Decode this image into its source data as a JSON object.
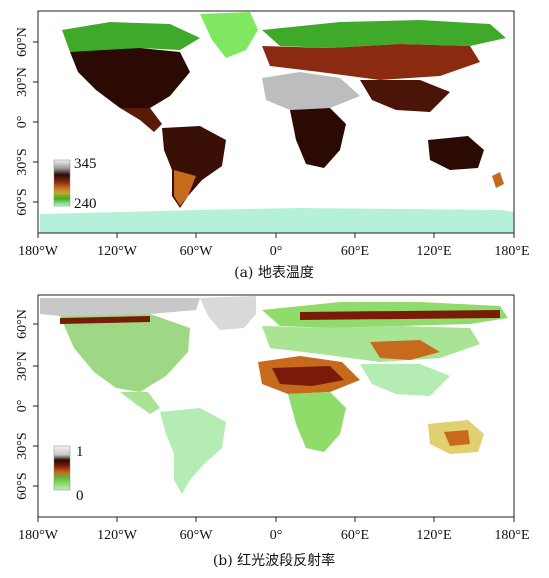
{
  "colors": {
    "ocean": "#ffffff",
    "frame": "#222222",
    "antarctic_ice": "#b5f0d8",
    "temperature_ramp": [
      "#b0ffb8",
      "#7fe860",
      "#3faa2a",
      "#b8b030",
      "#c86a1e",
      "#8a2a10",
      "#2b0a04",
      "#bdbdbd",
      "#f2f2f2"
    ],
    "reflectance_ramp": [
      "#b8f0b8",
      "#8fdc6a",
      "#5fb83a",
      "#e0d070",
      "#c86a1e",
      "#7a1a08",
      "#2b0a04",
      "#c8c8c8",
      "#f5f5f5"
    ]
  },
  "x_axis": {
    "ticks": [
      "180°W",
      "120°W",
      "60°W",
      "0°",
      "60°E",
      "120°E",
      "180°E"
    ]
  },
  "y_axis": {
    "ticks": [
      "60°N",
      "30°N",
      "0°",
      "30°S",
      "60°S"
    ]
  },
  "panels": [
    {
      "id": "a",
      "caption": "(a) 地表温度",
      "legend": {
        "max": "345",
        "min": "240"
      }
    },
    {
      "id": "b",
      "caption": "(b) 红光波段反射率",
      "legend": {
        "max": "1",
        "min": "0"
      }
    }
  ]
}
